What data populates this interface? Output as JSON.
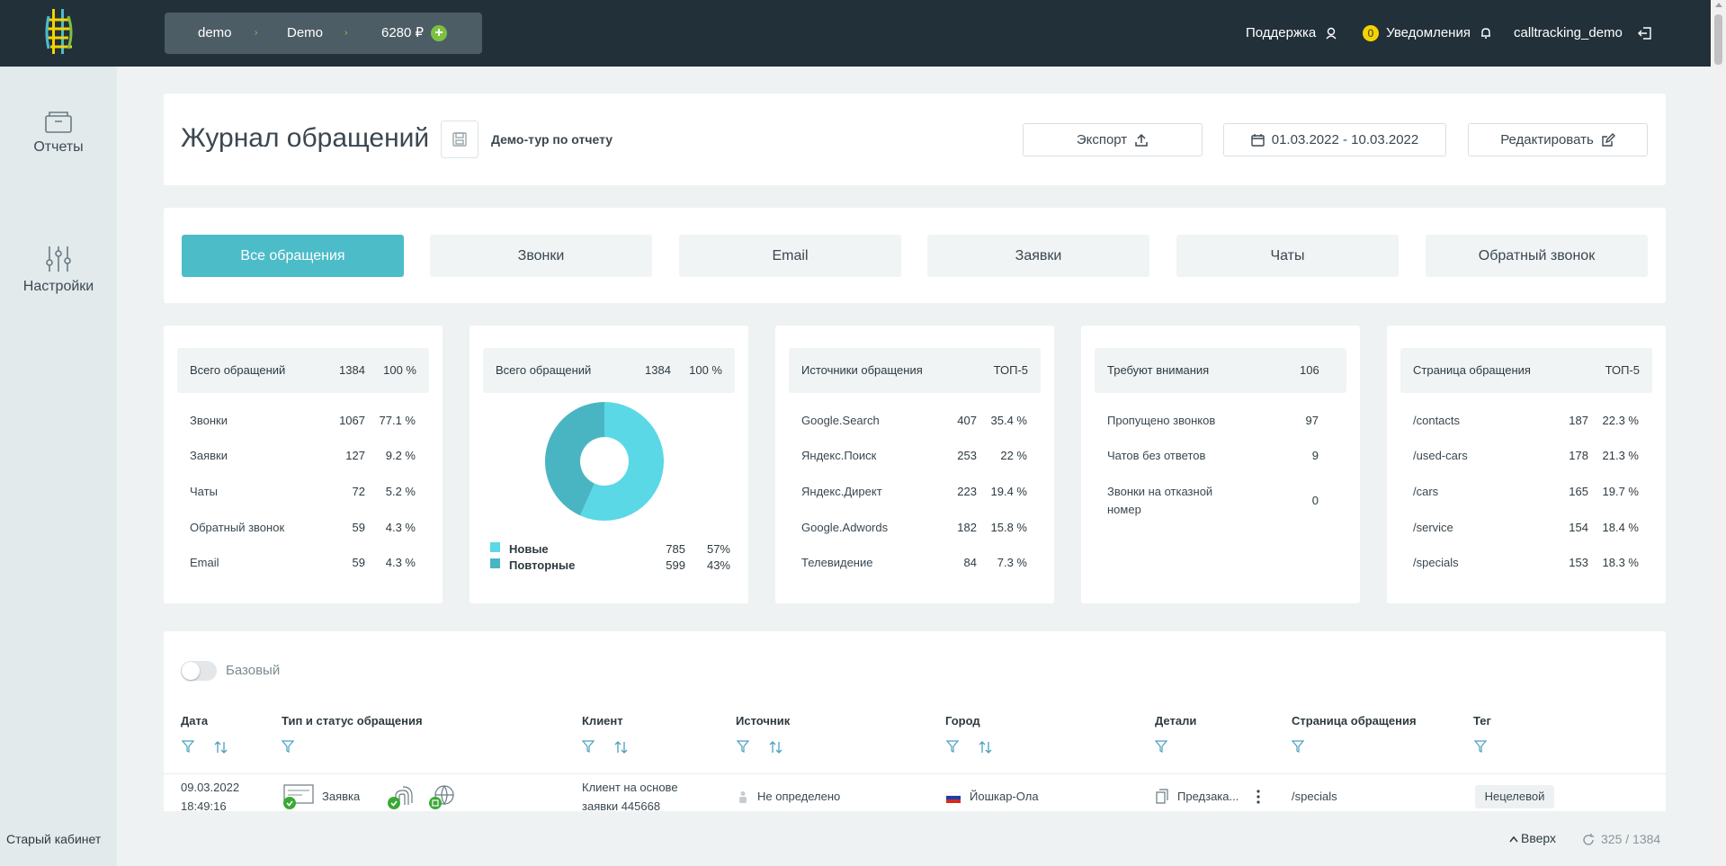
{
  "topbar": {
    "crumbs": [
      "demo",
      "Demo"
    ],
    "balance": "6280 ₽",
    "support": "Поддержка",
    "notifications_count": "0",
    "notifications": "Уведомления",
    "username": "calltracking_demo"
  },
  "sidebar": {
    "items": [
      {
        "label": "Отчеты",
        "icon": "archive-box-icon"
      },
      {
        "label": "Настройки",
        "icon": "sliders-icon"
      }
    ],
    "old_cabinet": "Старый кабинет"
  },
  "header": {
    "title": "Журнал обращений",
    "demo_tour": "Демо-тур по отчету",
    "export": "Экспорт",
    "date_range": "01.03.2022 - 10.03.2022",
    "edit": "Редактировать"
  },
  "tabs": [
    "Все обращения",
    "Звонки",
    "Email",
    "Заявки",
    "Чаты",
    "Обратный звонок"
  ],
  "stats": {
    "total": {
      "title": "Всего обращений",
      "count": "1384",
      "pct": "100 %",
      "rows": [
        {
          "label": "Звонки",
          "count": "1067",
          "pct": "77.1 %"
        },
        {
          "label": "Заявки",
          "count": "127",
          "pct": "9.2 %"
        },
        {
          "label": "Чаты",
          "count": "72",
          "pct": "5.2 %"
        },
        {
          "label": "Обратный звонок",
          "count": "59",
          "pct": "4.3 %"
        },
        {
          "label": "Email",
          "count": "59",
          "pct": "4.3 %"
        }
      ]
    },
    "donut": {
      "title": "Всего обращений",
      "count": "1384",
      "pct": "100 %",
      "legend": [
        {
          "label": "Новые",
          "count": "785",
          "pct": "57%",
          "color": "#5ad8e6"
        },
        {
          "label": "Повторные",
          "count": "599",
          "pct": "43%",
          "color": "#4ab5c2"
        }
      ]
    },
    "sources": {
      "title": "Источники обращения",
      "badge": "ТОП-5",
      "rows": [
        {
          "label": "Google.Search",
          "count": "407",
          "pct": "35.4 %"
        },
        {
          "label": "Яндекс.Поиск",
          "count": "253",
          "pct": "22 %"
        },
        {
          "label": "Яндекс.Директ",
          "count": "223",
          "pct": "19.4 %"
        },
        {
          "label": "Google.Adwords",
          "count": "182",
          "pct": "15.8 %"
        },
        {
          "label": "Телевидение",
          "count": "84",
          "pct": "7.3 %"
        }
      ]
    },
    "attention": {
      "title": "Требуют внимания",
      "count": "106",
      "rows": [
        {
          "label": "Пропущено звонков",
          "count": "97"
        },
        {
          "label": "Чатов без ответов",
          "count": "9"
        },
        {
          "label": "Звонки на отказной номер",
          "label_1": "Звонки на отказной",
          "label_2": "номер",
          "count": "0"
        }
      ]
    },
    "pages": {
      "title": "Страница обращения",
      "badge": "ТОП-5",
      "rows": [
        {
          "label": "/contacts",
          "count": "187",
          "pct": "22.3 %"
        },
        {
          "label": "/used-cars",
          "count": "178",
          "pct": "21.3 %"
        },
        {
          "label": "/cars",
          "count": "165",
          "pct": "19.7 %"
        },
        {
          "label": "/service",
          "count": "154",
          "pct": "18.4 %"
        },
        {
          "label": "/specials",
          "count": "153",
          "pct": "18.3 %"
        }
      ]
    }
  },
  "table": {
    "toggle_label": "Базовый",
    "columns": [
      "Дата",
      "Тип и статус обращения",
      "Клиент",
      "Источник",
      "Город",
      "Детали",
      "Страница обращения",
      "Тег"
    ],
    "row": {
      "date": "09.03.2022",
      "time": "18:49:16",
      "type": "Заявка",
      "client_1": "Клиент на основе",
      "client_2": "заявки 445668",
      "source": "Не определено",
      "city": "Йошкар-Ола",
      "details": "Предзака...",
      "page": "/specials",
      "tag": "Нецелевой"
    }
  },
  "footer": {
    "up": "Вверх",
    "count": "325 / 1384"
  }
}
